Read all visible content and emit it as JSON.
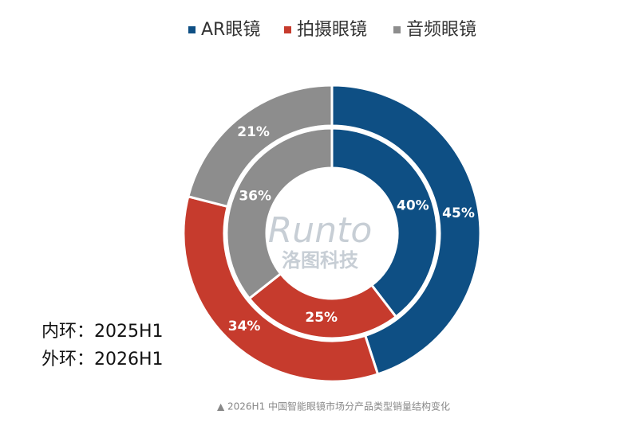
{
  "chart_data": {
    "type": "nested-donut",
    "categories": [
      "AR眼镜",
      "拍摄眼镜",
      "音频眼镜"
    ],
    "colors": [
      "#0e4f84",
      "#c63b2d",
      "#8d8d8d"
    ],
    "rings": [
      {
        "name": "内环：2025H1",
        "values": [
          40,
          25,
          36
        ],
        "value_labels": [
          "40%",
          "25%",
          "36%"
        ]
      },
      {
        "name": "外环：2026H1",
        "values": [
          45,
          34,
          21
        ],
        "value_labels": [
          "45%",
          "34%",
          "21%"
        ]
      }
    ],
    "watermark": [
      "Runto",
      "洛图科技"
    ],
    "caption": "▲ 2026H1 中国智能眼镜市场分产品类型销量结构变化"
  }
}
